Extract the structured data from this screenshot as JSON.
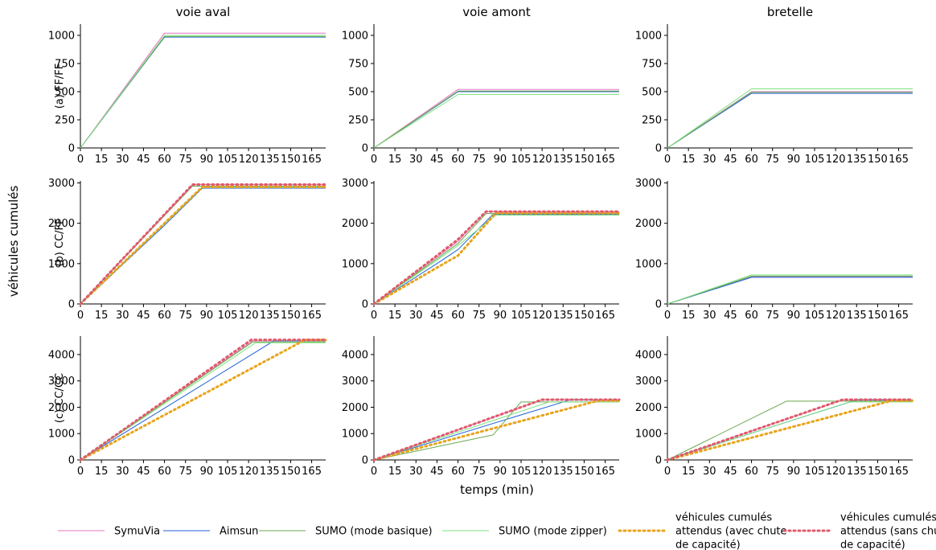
{
  "chart_data": {
    "type": "line",
    "xlabel": "temps (min)",
    "ylabel": "véhicules cumulés",
    "x_ticks": [
      0,
      15,
      30,
      45,
      60,
      75,
      90,
      105,
      120,
      135,
      150,
      165
    ],
    "xlim": [
      0,
      175
    ],
    "columns": [
      "voie aval",
      "voie amont",
      "bretelle"
    ],
    "rows": [
      {
        "label": "(a) FF/FF",
        "ylim": [
          0,
          1100
        ],
        "yticks": [
          0,
          250,
          500,
          750,
          1000
        ]
      },
      {
        "label": "(b) CC/FF",
        "ylim": [
          0,
          3050
        ],
        "yticks": [
          0,
          1000,
          2000,
          3000
        ]
      },
      {
        "label": "(c) CC/CC",
        "ylim": [
          0,
          4700
        ],
        "yticks": [
          0,
          1000,
          2000,
          3000,
          4000
        ]
      }
    ],
    "series_styles": [
      {
        "name": "SymuVia",
        "color": "#e377c2",
        "dash": "",
        "width": 1
      },
      {
        "name": "Aimsun",
        "color": "#1f5fd6",
        "dash": "",
        "width": 1
      },
      {
        "name": "SUMO (mode basique)",
        "color": "#6aa84f",
        "dash": "",
        "width": 1
      },
      {
        "name": "SUMO (mode zipper)",
        "color": "#7ee27e",
        "dash": "",
        "width": 1
      },
      {
        "name": "véhicules cumulés attendus (avec chute de capacité)",
        "color": "#e8a41c",
        "dash": "2,4",
        "width": 3
      },
      {
        "name": "véhicules cumulés attendus (sans chute de capacité)",
        "color": "#e05a6a",
        "dash": "2,4",
        "width": 3
      }
    ],
    "charts": [
      {
        "row": 0,
        "col": 0,
        "series": [
          {
            "name": "SymuVia",
            "x": [
              0,
              60,
              175
            ],
            "y": [
              0,
              1020,
              1020
            ]
          },
          {
            "name": "Aimsun",
            "x": [
              0,
              60,
              175
            ],
            "y": [
              0,
              985,
              985
            ]
          },
          {
            "name": "SUMO (mode basique)",
            "x": [
              0,
              60,
              175
            ],
            "y": [
              0,
              990,
              990
            ]
          },
          {
            "name": "SUMO (mode zipper)",
            "x": [
              0,
              60,
              175
            ],
            "y": [
              0,
              1000,
              1000
            ]
          }
        ]
      },
      {
        "row": 0,
        "col": 1,
        "series": [
          {
            "name": "SymuVia",
            "x": [
              0,
              60,
              175
            ],
            "y": [
              0,
              520,
              520
            ]
          },
          {
            "name": "Aimsun",
            "x": [
              0,
              60,
              175
            ],
            "y": [
              0,
              500,
              500
            ]
          },
          {
            "name": "SUMO (mode basique)",
            "x": [
              0,
              60,
              175
            ],
            "y": [
              0,
              505,
              505
            ]
          },
          {
            "name": "SUMO (mode zipper)",
            "x": [
              0,
              60,
              175
            ],
            "y": [
              0,
              475,
              475
            ]
          }
        ]
      },
      {
        "row": 0,
        "col": 2,
        "series": [
          {
            "name": "SymuVia",
            "x": [
              0,
              60,
              175
            ],
            "y": [
              0,
              500,
              500
            ]
          },
          {
            "name": "Aimsun",
            "x": [
              0,
              60,
              175
            ],
            "y": [
              0,
              485,
              485
            ]
          },
          {
            "name": "SUMO (mode basique)",
            "x": [
              0,
              60,
              175
            ],
            "y": [
              0,
              495,
              495
            ]
          },
          {
            "name": "SUMO (mode zipper)",
            "x": [
              0,
              60,
              175
            ],
            "y": [
              0,
              525,
              525
            ]
          }
        ]
      },
      {
        "row": 1,
        "col": 0,
        "series": [
          {
            "name": "SymuVia",
            "x": [
              0,
              80,
              175
            ],
            "y": [
              0,
              2960,
              2960
            ]
          },
          {
            "name": "Aimsun",
            "x": [
              0,
              60,
              87,
              175
            ],
            "y": [
              0,
              1950,
              2870,
              2870
            ]
          },
          {
            "name": "SUMO (mode basique)",
            "x": [
              0,
              80,
              175
            ],
            "y": [
              0,
              2920,
              2920
            ]
          },
          {
            "name": "SUMO (mode zipper)",
            "x": [
              0,
              87,
              175
            ],
            "y": [
              0,
              2900,
              2900
            ]
          },
          {
            "name": "véhicules cumulés attendus (avec chute de capacité)",
            "x": [
              0,
              87,
              175
            ],
            "y": [
              0,
              2900,
              2900
            ]
          },
          {
            "name": "véhicules cumulés attendus (sans chute de capacité)",
            "x": [
              0,
              80,
              175
            ],
            "y": [
              0,
              2960,
              2960
            ]
          }
        ]
      },
      {
        "row": 1,
        "col": 1,
        "series": [
          {
            "name": "SymuVia",
            "x": [
              0,
              60,
              80,
              175
            ],
            "y": [
              0,
              1550,
              2290,
              2290
            ]
          },
          {
            "name": "Aimsun",
            "x": [
              0,
              45,
              60,
              85,
              175
            ],
            "y": [
              0,
              1000,
              1350,
              2220,
              2220
            ]
          },
          {
            "name": "SUMO (mode basique)",
            "x": [
              0,
              60,
              80,
              175
            ],
            "y": [
              0,
              1500,
              2240,
              2240
            ]
          },
          {
            "name": "SUMO (mode zipper)",
            "x": [
              0,
              60,
              87,
              175
            ],
            "y": [
              0,
              1450,
              2200,
              2200
            ]
          },
          {
            "name": "véhicules cumulés attendus (avec chute de capacité)",
            "x": [
              0,
              60,
              87,
              175
            ],
            "y": [
              0,
              1200,
              2250,
              2250
            ]
          },
          {
            "name": "véhicules cumulés attendus (sans chute de capacité)",
            "x": [
              0,
              60,
              80,
              175
            ],
            "y": [
              0,
              1600,
              2290,
              2290
            ]
          }
        ]
      },
      {
        "row": 1,
        "col": 2,
        "series": [
          {
            "name": "SymuVia",
            "x": [
              0,
              60,
              175
            ],
            "y": [
              0,
              680,
              680
            ]
          },
          {
            "name": "Aimsun",
            "x": [
              0,
              60,
              175
            ],
            "y": [
              0,
              660,
              660
            ]
          },
          {
            "name": "SUMO (mode basique)",
            "x": [
              0,
              60,
              175
            ],
            "y": [
              0,
              690,
              690
            ]
          },
          {
            "name": "SUMO (mode zipper)",
            "x": [
              0,
              60,
              175
            ],
            "y": [
              0,
              720,
              720
            ]
          }
        ]
      },
      {
        "row": 2,
        "col": 0,
        "series": [
          {
            "name": "SymuVia",
            "x": [
              0,
              123,
              175
            ],
            "y": [
              0,
              4520,
              4520
            ]
          },
          {
            "name": "Aimsun",
            "x": [
              0,
              138,
              175
            ],
            "y": [
              0,
              4520,
              4520
            ]
          },
          {
            "name": "SUMO (mode basique)",
            "x": [
              0,
              123,
              175
            ],
            "y": [
              0,
              4480,
              4480
            ]
          },
          {
            "name": "SUMO (mode zipper)",
            "x": [
              0,
              125,
              175
            ],
            "y": [
              0,
              4450,
              4450
            ]
          },
          {
            "name": "véhicules cumulés attendus (avec chute de capacité)",
            "x": [
              0,
              160,
              175
            ],
            "y": [
              0,
              4550,
              4550
            ]
          },
          {
            "name": "véhicules cumulés attendus (sans chute de capacité)",
            "x": [
              0,
              122,
              175
            ],
            "y": [
              0,
              4560,
              4560
            ]
          }
        ]
      },
      {
        "row": 2,
        "col": 1,
        "series": [
          {
            "name": "SymuVia",
            "x": [
              0,
              120,
              175
            ],
            "y": [
              0,
              2280,
              2280
            ]
          },
          {
            "name": "Aimsun",
            "x": [
              0,
              140,
              175
            ],
            "y": [
              0,
              2280,
              2280
            ]
          },
          {
            "name": "SUMO (mode basique)",
            "x": [
              0,
              85,
              105,
              175
            ],
            "y": [
              0,
              950,
              2200,
              2200
            ]
          },
          {
            "name": "SUMO (mode zipper)",
            "x": [
              0,
              125,
              175
            ],
            "y": [
              0,
              2200,
              2200
            ]
          },
          {
            "name": "véhicules cumulés attendus (avec chute de capacité)",
            "x": [
              0,
              160,
              175
            ],
            "y": [
              0,
              2250,
              2250
            ]
          },
          {
            "name": "véhicules cumulés attendus (sans chute de capacité)",
            "x": [
              0,
              120,
              175
            ],
            "y": [
              0,
              2290,
              2290
            ]
          }
        ]
      },
      {
        "row": 2,
        "col": 2,
        "series": [
          {
            "name": "SymuVia",
            "x": [
              0,
              125,
              175
            ],
            "y": [
              0,
              2280,
              2280
            ]
          },
          {
            "name": "Aimsun",
            "x": [
              0,
              135,
              175
            ],
            "y": [
              0,
              2280,
              2280
            ]
          },
          {
            "name": "SUMO (mode basique)",
            "x": [
              0,
              85,
              175
            ],
            "y": [
              0,
              2230,
              2230
            ]
          },
          {
            "name": "SUMO (mode zipper)",
            "x": [
              0,
              130,
              175
            ],
            "y": [
              0,
              2200,
              2200
            ]
          },
          {
            "name": "véhicules cumulés attendus (avec chute de capacité)",
            "x": [
              0,
              160,
              175
            ],
            "y": [
              0,
              2250,
              2250
            ]
          },
          {
            "name": "véhicules cumulés attendus (sans chute de capacité)",
            "x": [
              0,
              125,
              175
            ],
            "y": [
              0,
              2290,
              2290
            ]
          }
        ]
      }
    ],
    "legend": {
      "placement": "bottom",
      "entries": [
        {
          "lines": [
            "SymuVia"
          ]
        },
        {
          "lines": [
            "Aimsun"
          ]
        },
        {
          "lines": [
            "SUMO (mode basique)"
          ]
        },
        {
          "lines": [
            "SUMO (mode zipper)"
          ]
        },
        {
          "lines": [
            "véhicules cumulés",
            "attendus (avec chute",
            "de capacité)"
          ]
        },
        {
          "lines": [
            "véhicules cumulés",
            "attendus (sans chute",
            "de capacité)"
          ]
        }
      ]
    }
  }
}
